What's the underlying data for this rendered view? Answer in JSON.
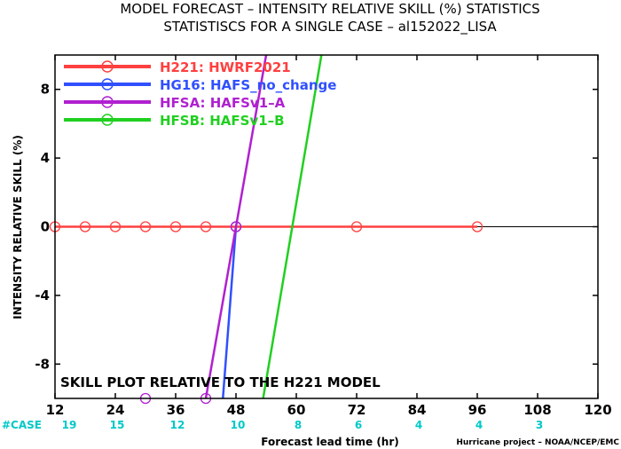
{
  "chart_data": {
    "type": "line",
    "title": "MODEL FORECAST – INTENSITY RELATIVE SKILL (%) STATISTICS",
    "subtitle": "STATISTISCS FOR A SINGLE CASE – al152022_LISA",
    "xlabel": "Forecast lead time (hr)",
    "ylabel": "INTENSITY RELATIVE SKILL (%)",
    "xlim": [
      12,
      120
    ],
    "ylim": [
      -10,
      10
    ],
    "x_ticks": [
      "12",
      "24",
      "36",
      "48",
      "60",
      "72",
      "84",
      "96",
      "108",
      "120"
    ],
    "y_ticks": [
      "8",
      "4",
      "0",
      "-4",
      "-8"
    ],
    "zero_line": true,
    "legend_position": "top-left",
    "annotation": "SKILL PLOT RELATIVE TO THE H221 MODEL",
    "case_label": "#CASE",
    "case_x": [
      12,
      24,
      36,
      48,
      60,
      72,
      84,
      96,
      108
    ],
    "case_counts": [
      "19",
      "15",
      "12",
      "10",
      "8",
      "6",
      "4",
      "4",
      "3"
    ],
    "case_color": "#00c8c8",
    "credit": "Hurricane project – NOAA/NCEP/EMC",
    "series": [
      {
        "name": "H221: HWRF2021",
        "color": "#ff4040",
        "x": [
          12,
          18,
          24,
          30,
          36,
          42,
          48,
          72,
          96
        ],
        "y": [
          0,
          0,
          0,
          0,
          0,
          0,
          0,
          0,
          0
        ],
        "markers": [
          12,
          18,
          24,
          30,
          36,
          42,
          48,
          72,
          96
        ],
        "marker_y": [
          0,
          0,
          0,
          0,
          0,
          0,
          0,
          0,
          0
        ]
      },
      {
        "name": "HG16: HAFS_no_change",
        "color": "#3050ff",
        "x": [
          45.4,
          48
        ],
        "y": [
          -10,
          0
        ],
        "markers": [
          48
        ],
        "marker_y": [
          0
        ]
      },
      {
        "name": "HFSA: HAFSv1–A",
        "color": "#b020d0",
        "x": [
          42,
          48,
          54
        ],
        "y": [
          -10,
          0,
          10
        ],
        "markers": [
          30,
          42,
          48
        ],
        "marker_y": [
          -10,
          -10,
          0
        ]
      },
      {
        "name": "HFSB: HAFSv1–B",
        "color": "#20d020",
        "x": [
          53.4,
          65
        ],
        "y": [
          -10,
          10
        ],
        "markers": [],
        "marker_y": []
      }
    ]
  }
}
